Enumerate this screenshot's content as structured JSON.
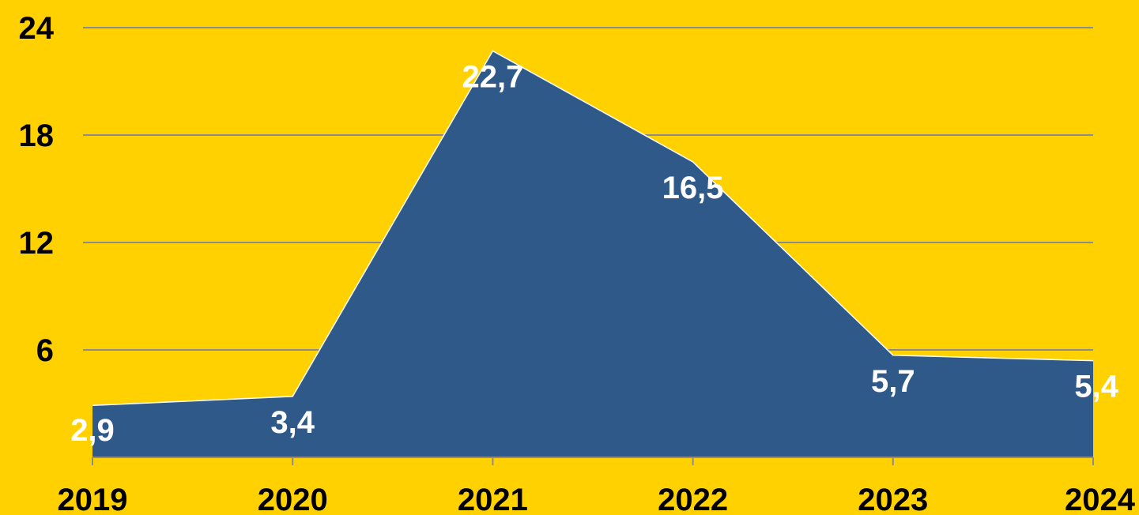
{
  "chart_data": {
    "type": "area",
    "categories": [
      "2019",
      "2020",
      "2021",
      "2022",
      "2023",
      "2024"
    ],
    "values": [
      2.9,
      3.4,
      22.7,
      16.5,
      5.7,
      5.4
    ],
    "value_labels": [
      "2,9",
      "3,4",
      "22,7",
      "16,5",
      "5,7",
      "5,4"
    ],
    "yticks": [
      6,
      12,
      18,
      24
    ],
    "ytick_labels": [
      "6",
      "12",
      "18",
      "24"
    ],
    "ylim": [
      0,
      24
    ],
    "grid": true,
    "colors": {
      "background": "#FFD100",
      "area_fill": "#2F5989",
      "area_edge": "#FFFFFF",
      "gridline": "#8C8C8C",
      "data_label": "#FFFFFF",
      "tick_label": "#000000"
    }
  }
}
